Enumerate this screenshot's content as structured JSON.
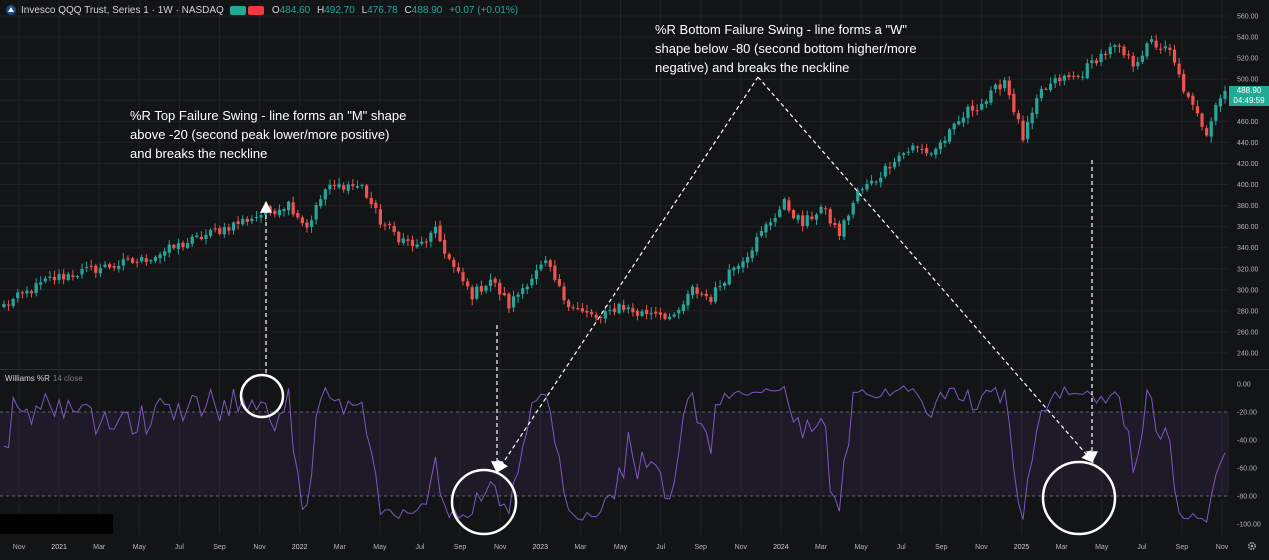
{
  "header": {
    "symbol": "Invesco QQQ Trust, Series 1 · 1W · NASDAQ",
    "labels": {
      "o": "O",
      "h": "H",
      "l": "L",
      "c": "C"
    },
    "values": {
      "o": "484.60",
      "h": "492.70",
      "l": "476.78",
      "c": "488.90",
      "change": "+0.07 (+0.01%)"
    },
    "colors": {
      "up": "#26a69a",
      "down": "#ef5350",
      "chip_a": "#22ab94",
      "chip_b": "#f23645"
    },
    "logo_icon": "invesco-logo-icon"
  },
  "indicator": {
    "name": "Williams %R",
    "params": "14 close"
  },
  "last_price": {
    "price": "488.90",
    "countdown": "04:49:59"
  },
  "annotations": {
    "top": [
      "%R Top Failure Swing - line forms an \"M\" shape",
      "above -20 (second peak lower/more positive)",
      "and breaks the neckline"
    ],
    "bottom": [
      "%R  Bottom  Failure Swing - line forms a \"W\"",
      "shape below -80 (second bottom higher/more",
      "negative) and breaks the neckline"
    ]
  },
  "colors": {
    "background": "#131416",
    "grid": "#1e2127",
    "axis_text": "#b2b5be",
    "band": "#7e57c2",
    "wr_line": "#7e57c2",
    "annotation": "#ffffff",
    "up": "#26a69a",
    "down": "#ef5350"
  },
  "chart_data": [
    {
      "type": "candlestick",
      "x_axis_labels": [
        "Nov",
        "2021",
        "Mar",
        "May",
        "Jul",
        "Sep",
        "Nov",
        "2022",
        "Mar",
        "May",
        "Jul",
        "Sep",
        "Nov",
        "2023",
        "Mar",
        "May",
        "Jul",
        "Sep",
        "Nov",
        "2024",
        "Mar",
        "May",
        "Jul",
        "Sep",
        "Nov",
        "2025",
        "Mar",
        "May",
        "Jul",
        "Sep",
        "Nov"
      ],
      "y_ticks": [
        "560.00",
        "540.00",
        "520.00",
        "500.00",
        "480.00",
        "460.00",
        "440.00",
        "420.00",
        "400.00",
        "380.00",
        "360.00",
        "340.00",
        "320.00",
        "300.00",
        "280.00",
        "260.00",
        "240.00"
      ],
      "ylim": [
        230,
        565
      ],
      "anchors": [
        [
          0,
          285
        ],
        [
          10,
          310
        ],
        [
          20,
          320
        ],
        [
          30,
          328
        ],
        [
          40,
          345
        ],
        [
          50,
          362
        ],
        [
          58,
          375
        ],
        [
          62,
          382
        ],
        [
          66,
          360
        ],
        [
          70,
          395
        ],
        [
          74,
          400
        ],
        [
          78,
          398
        ],
        [
          82,
          365
        ],
        [
          86,
          350
        ],
        [
          90,
          340
        ],
        [
          94,
          355
        ],
        [
          98,
          320
        ],
        [
          102,
          295
        ],
        [
          106,
          310
        ],
        [
          110,
          285
        ],
        [
          114,
          308
        ],
        [
          118,
          325
        ],
        [
          122,
          292
        ],
        [
          126,
          278
        ],
        [
          130,
          272
        ],
        [
          134,
          286
        ],
        [
          138,
          277
        ],
        [
          142,
          280
        ],
        [
          146,
          272
        ],
        [
          150,
          300
        ],
        [
          154,
          292
        ],
        [
          158,
          318
        ],
        [
          162,
          335
        ],
        [
          166,
          360
        ],
        [
          170,
          382
        ],
        [
          174,
          362
        ],
        [
          178,
          378
        ],
        [
          182,
          353
        ],
        [
          186,
          392
        ],
        [
          190,
          405
        ],
        [
          194,
          425
        ],
        [
          198,
          435
        ],
        [
          202,
          430
        ],
        [
          206,
          448
        ],
        [
          210,
          470
        ],
        [
          214,
          480
        ],
        [
          218,
          500
        ],
        [
          222,
          444
        ],
        [
          226,
          488
        ],
        [
          230,
          500
        ],
        [
          234,
          502
        ],
        [
          238,
          520
        ],
        [
          242,
          530
        ],
        [
          246,
          515
        ],
        [
          250,
          535
        ],
        [
          254,
          525
        ],
        [
          258,
          480
        ],
        [
          262,
          450
        ],
        [
          264,
          478
        ],
        [
          266,
          488.9
        ]
      ],
      "bar_count": 267
    },
    {
      "type": "line",
      "name": "Williams %R",
      "y_ticks": [
        "0.00",
        "-20.00",
        "-40.00",
        "-60.00",
        "-80.00",
        "-100.00"
      ],
      "ylim": [
        -104,
        4
      ],
      "levels": [
        -20,
        -80
      ]
    }
  ]
}
